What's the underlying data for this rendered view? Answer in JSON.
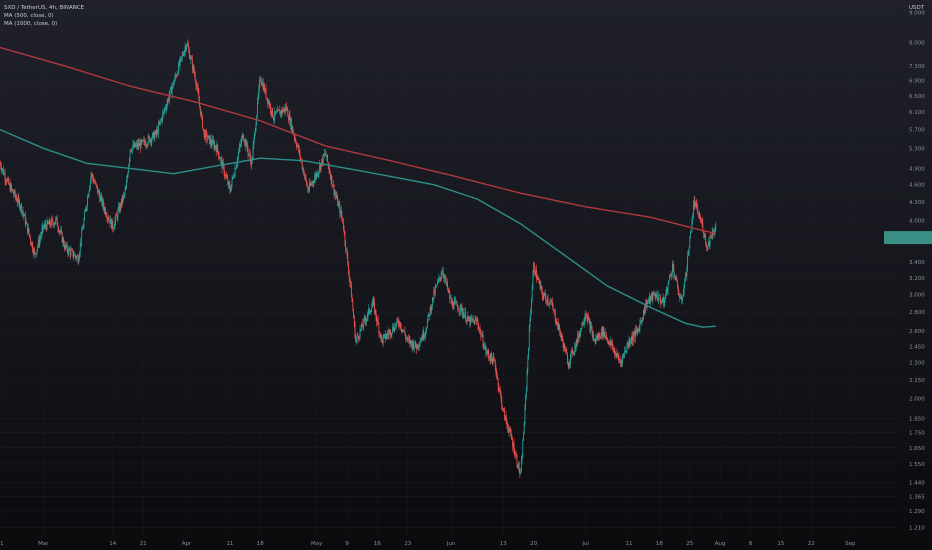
{
  "legend": {
    "symbol": "SXD / TetherUS, 4h, BINANCE",
    "ma_slow": "MA (500, close, 0)",
    "ma_fast": "MA (1000, close, 0)"
  },
  "price_axis": {
    "unit": "USDT"
  },
  "colors": {
    "background_top": "#1f2029",
    "background_bottom": "#0b0b0e",
    "up": "#26a69a",
    "down": "#ef5350",
    "ma_slow": "#b2383f",
    "ma_fast": "#2b8f8a",
    "grid": "#2a2d36",
    "last_price_tag": "#3a8f84"
  },
  "chart_data": {
    "type": "candlestick",
    "title": "SXD / TetherUS, 4h, BINANCE",
    "y_scale": "log",
    "ylim": [
      1.17,
      9.3
    ],
    "y_ticks": [
      "9.000",
      "8.000",
      "7.300",
      "6.900",
      "6.500",
      "6.100",
      "5.700",
      "5.300",
      "4.900",
      "4.600",
      "4.300",
      "4.000",
      "3.400",
      "3.200",
      "3.000",
      "2.800",
      "2.600",
      "2.450",
      "2.300",
      "2.150",
      "2.000",
      "1.850",
      "1.750",
      "1.650",
      "1.550",
      "1.440",
      "1.365",
      "1.290",
      "1.210"
    ],
    "x_ticks": [
      "21",
      "Mar",
      "14",
      "21",
      "Apr",
      "11",
      "18",
      "May",
      "9",
      "16",
      "23",
      "Jun",
      "13",
      "20",
      "Jul",
      "11",
      "18",
      "25",
      "Aug",
      "8",
      "15",
      "22",
      "Sep"
    ],
    "x_range_days": [
      0,
      207
    ],
    "x_tick_days": [
      0,
      10,
      26,
      33,
      43,
      53,
      60,
      73,
      80,
      87,
      94,
      104,
      116,
      123,
      135,
      145,
      152,
      159,
      166,
      173,
      180,
      187,
      196
    ],
    "price_path": [
      [
        0,
        5.0
      ],
      [
        2,
        4.6
      ],
      [
        5,
        4.2
      ],
      [
        8,
        3.5
      ],
      [
        10,
        3.9
      ],
      [
        13,
        4.0
      ],
      [
        15,
        3.6
      ],
      [
        18,
        3.45
      ],
      [
        21,
        4.8
      ],
      [
        24,
        4.2
      ],
      [
        26,
        3.9
      ],
      [
        29,
        4.5
      ],
      [
        30,
        5.3
      ],
      [
        33,
        5.4
      ],
      [
        36,
        5.6
      ],
      [
        39,
        6.5
      ],
      [
        41,
        7.2
      ],
      [
        43,
        8.0
      ],
      [
        45,
        7.0
      ],
      [
        47,
        5.6
      ],
      [
        50,
        5.3
      ],
      [
        53,
        4.5
      ],
      [
        56,
        5.6
      ],
      [
        58,
        5.0
      ],
      [
        60,
        7.0
      ],
      [
        63,
        6.0
      ],
      [
        66,
        6.2
      ],
      [
        69,
        5.2
      ],
      [
        71,
        4.5
      ],
      [
        73,
        4.8
      ],
      [
        75,
        5.2
      ],
      [
        77,
        4.5
      ],
      [
        79,
        4.0
      ],
      [
        81,
        3.0
      ],
      [
        82,
        2.5
      ],
      [
        84,
        2.7
      ],
      [
        86,
        2.9
      ],
      [
        88,
        2.5
      ],
      [
        90,
        2.6
      ],
      [
        92,
        2.7
      ],
      [
        94,
        2.5
      ],
      [
        96,
        2.45
      ],
      [
        98,
        2.6
      ],
      [
        100,
        3.0
      ],
      [
        102,
        3.3
      ],
      [
        104,
        2.9
      ],
      [
        106,
        2.85
      ],
      [
        108,
        2.7
      ],
      [
        110,
        2.7
      ],
      [
        112,
        2.4
      ],
      [
        114,
        2.3
      ],
      [
        116,
        1.9
      ],
      [
        118,
        1.7
      ],
      [
        120,
        1.48
      ],
      [
        121,
        1.9
      ],
      [
        122,
        2.6
      ],
      [
        123,
        3.35
      ],
      [
        125,
        3.0
      ],
      [
        127,
        2.9
      ],
      [
        129,
        2.6
      ],
      [
        131,
        2.3
      ],
      [
        133,
        2.5
      ],
      [
        135,
        2.8
      ],
      [
        137,
        2.5
      ],
      [
        139,
        2.6
      ],
      [
        141,
        2.45
      ],
      [
        143,
        2.3
      ],
      [
        145,
        2.5
      ],
      [
        147,
        2.6
      ],
      [
        149,
        2.9
      ],
      [
        151,
        3.0
      ],
      [
        153,
        2.9
      ],
      [
        155,
        3.35
      ],
      [
        157,
        2.9
      ],
      [
        158,
        3.2
      ],
      [
        160,
        4.3
      ],
      [
        162,
        3.9
      ],
      [
        163,
        3.6
      ],
      [
        164,
        3.8
      ],
      [
        165,
        3.9
      ]
    ],
    "series": [
      {
        "name": "MA (500, close, 0)",
        "color": "#b2383f",
        "points": [
          [
            0,
            7.85
          ],
          [
            15,
            7.3
          ],
          [
            30,
            6.75
          ],
          [
            45,
            6.35
          ],
          [
            60,
            5.9
          ],
          [
            75,
            5.35
          ],
          [
            90,
            5.05
          ],
          [
            105,
            4.75
          ],
          [
            120,
            4.45
          ],
          [
            135,
            4.22
          ],
          [
            150,
            4.05
          ],
          [
            160,
            3.88
          ],
          [
            165,
            3.8
          ]
        ]
      },
      {
        "name": "MA (1000, close, 0)",
        "color": "#2b8f8a",
        "points": [
          [
            0,
            5.7
          ],
          [
            10,
            5.3
          ],
          [
            20,
            5.0
          ],
          [
            30,
            4.9
          ],
          [
            40,
            4.8
          ],
          [
            50,
            4.95
          ],
          [
            60,
            5.1
          ],
          [
            70,
            5.05
          ],
          [
            80,
            4.9
          ],
          [
            90,
            4.75
          ],
          [
            100,
            4.6
          ],
          [
            110,
            4.35
          ],
          [
            120,
            3.95
          ],
          [
            130,
            3.5
          ],
          [
            140,
            3.1
          ],
          [
            150,
            2.85
          ],
          [
            158,
            2.68
          ],
          [
            162,
            2.64
          ],
          [
            165,
            2.65
          ]
        ]
      }
    ],
    "last_price": {
      "value": 3.75
    }
  }
}
